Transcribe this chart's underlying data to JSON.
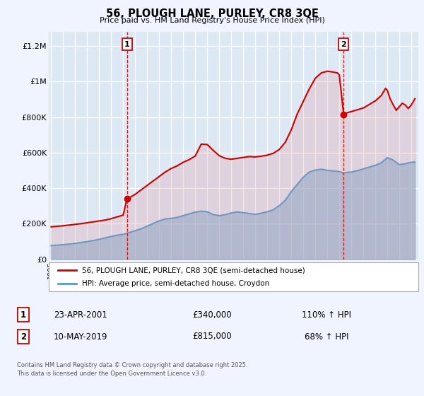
{
  "title": "56, PLOUGH LANE, PURLEY, CR8 3QE",
  "subtitle": "Price paid vs. HM Land Registry's House Price Index (HPI)",
  "background_color": "#f0f4ff",
  "plot_bg_color": "#dde8f5",
  "grid_color": "#ffffff",
  "ylabel_ticks": [
    "£0",
    "£200K",
    "£400K",
    "£600K",
    "£800K",
    "£1M",
    "£1.2M"
  ],
  "ytick_vals": [
    0,
    200000,
    400000,
    600000,
    800000,
    1000000,
    1200000
  ],
  "ylim": [
    0,
    1280000
  ],
  "xlim_start": 1994.8,
  "xlim_end": 2025.6,
  "sale1_year": 2001.31,
  "sale1_price": 340000,
  "sale2_year": 2019.37,
  "sale2_price": 815000,
  "legend_line1": "56, PLOUGH LANE, PURLEY, CR8 3QE (semi-detached house)",
  "legend_line2": "HPI: Average price, semi-detached house, Croydon",
  "label1_date": "23-APR-2001",
  "label1_price": "£340,000",
  "label1_hpi": "110% ↑ HPI",
  "label2_date": "10-MAY-2019",
  "label2_price": "£815,000",
  "label2_hpi": "68% ↑ HPI",
  "footer": "Contains HM Land Registry data © Crown copyright and database right 2025.\nThis data is licensed under the Open Government Licence v3.0.",
  "property_color": "#cc0000",
  "hpi_fill_color": "#7aaed6",
  "hpi_line_color": "#5599cc",
  "prop_fill_color": "#dd8888",
  "hpi_data": [
    [
      1995.0,
      78000
    ],
    [
      1995.5,
      80000
    ],
    [
      1996.0,
      83000
    ],
    [
      1996.5,
      86000
    ],
    [
      1997.0,
      90000
    ],
    [
      1997.5,
      95000
    ],
    [
      1998.0,
      100000
    ],
    [
      1998.5,
      106000
    ],
    [
      1999.0,
      113000
    ],
    [
      1999.5,
      121000
    ],
    [
      2000.0,
      129000
    ],
    [
      2000.5,
      136000
    ],
    [
      2001.0,
      141000
    ],
    [
      2001.5,
      151000
    ],
    [
      2002.0,
      162000
    ],
    [
      2002.5,
      172000
    ],
    [
      2003.0,
      187000
    ],
    [
      2003.5,
      202000
    ],
    [
      2004.0,
      217000
    ],
    [
      2004.5,
      227000
    ],
    [
      2005.0,
      231000
    ],
    [
      2005.5,
      236000
    ],
    [
      2006.0,
      246000
    ],
    [
      2006.5,
      256000
    ],
    [
      2007.0,
      266000
    ],
    [
      2007.5,
      271000
    ],
    [
      2008.0,
      268000
    ],
    [
      2008.5,
      252000
    ],
    [
      2009.0,
      246000
    ],
    [
      2009.5,
      251000
    ],
    [
      2010.0,
      261000
    ],
    [
      2010.5,
      267000
    ],
    [
      2011.0,
      263000
    ],
    [
      2011.5,
      258000
    ],
    [
      2012.0,
      253000
    ],
    [
      2012.5,
      260000
    ],
    [
      2013.0,
      268000
    ],
    [
      2013.5,
      279000
    ],
    [
      2014.0,
      302000
    ],
    [
      2014.5,
      332000
    ],
    [
      2015.0,
      381000
    ],
    [
      2015.5,
      422000
    ],
    [
      2016.0,
      462000
    ],
    [
      2016.5,
      491000
    ],
    [
      2017.0,
      502000
    ],
    [
      2017.5,
      507000
    ],
    [
      2018.0,
      501000
    ],
    [
      2018.5,
      497000
    ],
    [
      2019.0,
      494000
    ],
    [
      2019.37,
      484000
    ],
    [
      2019.5,
      488000
    ],
    [
      2020.0,
      491000
    ],
    [
      2020.5,
      499000
    ],
    [
      2021.0,
      509000
    ],
    [
      2021.5,
      519000
    ],
    [
      2022.0,
      529000
    ],
    [
      2022.5,
      543000
    ],
    [
      2023.0,
      572000
    ],
    [
      2023.5,
      558000
    ],
    [
      2024.0,
      533000
    ],
    [
      2024.5,
      538000
    ],
    [
      2025.0,
      546000
    ],
    [
      2025.3,
      548000
    ]
  ],
  "property_data": [
    [
      1995.0,
      183000
    ],
    [
      1995.5,
      186000
    ],
    [
      1996.0,
      189000
    ],
    [
      1996.5,
      193000
    ],
    [
      1997.0,
      197000
    ],
    [
      1997.5,
      201000
    ],
    [
      1998.0,
      206000
    ],
    [
      1998.5,
      211000
    ],
    [
      1999.0,
      216000
    ],
    [
      1999.5,
      221000
    ],
    [
      2000.0,
      229000
    ],
    [
      2000.5,
      239000
    ],
    [
      2001.0,
      249000
    ],
    [
      2001.31,
      340000
    ],
    [
      2001.5,
      346000
    ],
    [
      2002.0,
      366000
    ],
    [
      2002.5,
      391000
    ],
    [
      2003.0,
      416000
    ],
    [
      2003.5,
      441000
    ],
    [
      2004.0,
      466000
    ],
    [
      2004.5,
      491000
    ],
    [
      2005.0,
      511000
    ],
    [
      2005.5,
      526000
    ],
    [
      2006.0,
      546000
    ],
    [
      2006.5,
      561000
    ],
    [
      2007.0,
      581000
    ],
    [
      2007.5,
      648000
    ],
    [
      2008.0,
      646000
    ],
    [
      2008.5,
      613000
    ],
    [
      2009.0,
      583000
    ],
    [
      2009.5,
      568000
    ],
    [
      2010.0,
      563000
    ],
    [
      2010.5,
      568000
    ],
    [
      2011.0,
      573000
    ],
    [
      2011.5,
      578000
    ],
    [
      2012.0,
      576000
    ],
    [
      2012.5,
      580000
    ],
    [
      2013.0,
      586000
    ],
    [
      2013.5,
      596000
    ],
    [
      2014.0,
      618000
    ],
    [
      2014.5,
      658000
    ],
    [
      2015.0,
      728000
    ],
    [
      2015.5,
      818000
    ],
    [
      2016.0,
      888000
    ],
    [
      2016.5,
      958000
    ],
    [
      2017.0,
      1018000
    ],
    [
      2017.5,
      1048000
    ],
    [
      2018.0,
      1058000
    ],
    [
      2018.5,
      1053000
    ],
    [
      2018.85,
      1048000
    ],
    [
      2019.0,
      1038000
    ],
    [
      2019.37,
      815000
    ],
    [
      2019.5,
      821000
    ],
    [
      2020.0,
      831000
    ],
    [
      2020.5,
      841000
    ],
    [
      2021.0,
      851000
    ],
    [
      2021.5,
      871000
    ],
    [
      2022.0,
      891000
    ],
    [
      2022.5,
      921000
    ],
    [
      2022.85,
      961000
    ],
    [
      2023.0,
      951000
    ],
    [
      2023.25,
      901000
    ],
    [
      2023.5,
      868000
    ],
    [
      2023.75,
      838000
    ],
    [
      2024.0,
      858000
    ],
    [
      2024.25,
      878000
    ],
    [
      2024.5,
      868000
    ],
    [
      2024.75,
      848000
    ],
    [
      2025.0,
      868000
    ],
    [
      2025.3,
      903000
    ]
  ]
}
